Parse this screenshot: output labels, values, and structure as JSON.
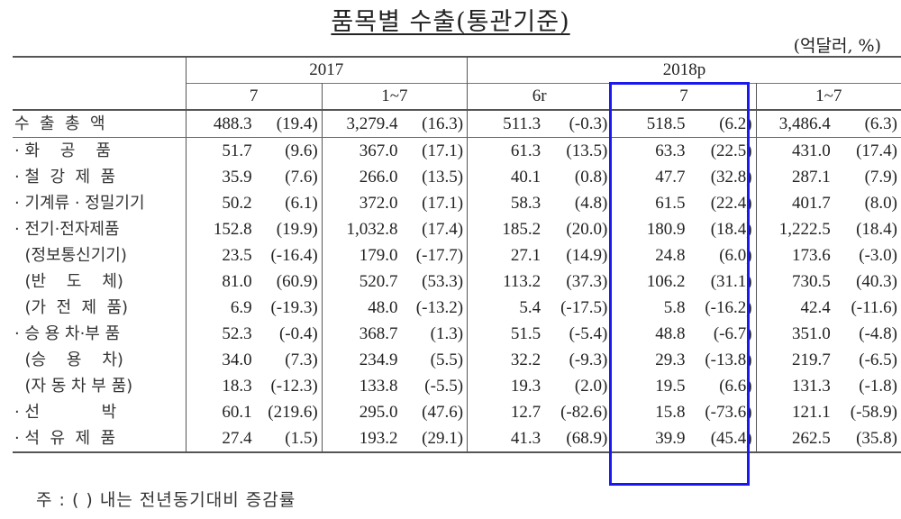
{
  "title": "품목별 수출(통관기준)",
  "unit": "(억달러, %)",
  "header": {
    "years": [
      "2017",
      "2018p"
    ],
    "periods": [
      "7",
      "1~7",
      "6r",
      "7",
      "1~7"
    ]
  },
  "rows": [
    {
      "label": "수  출  총  액",
      "v": [
        "488.3",
        "(19.4)",
        "3,279.4",
        "(16.3)",
        "511.3",
        "(-0.3)",
        "518.5",
        "(6.2)",
        "3,486.4",
        "(6.3)"
      ]
    },
    {
      "label": "· 화    공    품",
      "v": [
        "51.7",
        "(9.6)",
        "367.0",
        "(17.1)",
        "61.3",
        "(13.5)",
        "63.3",
        "(22.5)",
        "431.0",
        "(17.4)"
      ]
    },
    {
      "label": "· 철  강  제  품",
      "v": [
        "35.9",
        "(7.6)",
        "266.0",
        "(13.5)",
        "40.1",
        "(0.8)",
        "47.7",
        "(32.8)",
        "287.1",
        "(7.9)"
      ]
    },
    {
      "label": "· 기계류 · 정밀기기",
      "v": [
        "50.2",
        "(6.1)",
        "372.0",
        "(17.1)",
        "58.3",
        "(4.8)",
        "61.5",
        "(22.4)",
        "401.7",
        "(8.0)"
      ]
    },
    {
      "label": "· 전기·전자제품",
      "v": [
        "152.8",
        "(19.9)",
        "1,032.8",
        "(17.4)",
        "185.2",
        "(20.0)",
        "180.9",
        "(18.4)",
        "1,222.5",
        "(18.4)"
      ]
    },
    {
      "label": "  (정보통신기기)",
      "v": [
        "23.5",
        "(-16.4)",
        "179.0",
        "(-17.7)",
        "27.1",
        "(14.9)",
        "24.8",
        "(6.0)",
        "173.6",
        "(-3.0)"
      ]
    },
    {
      "label": "  (반    도    체)",
      "v": [
        "81.0",
        "(60.9)",
        "520.7",
        "(53.3)",
        "113.2",
        "(37.3)",
        "106.2",
        "(31.1)",
        "730.5",
        "(40.3)"
      ]
    },
    {
      "label": "  (가  전  제  품)",
      "v": [
        "6.9",
        "(-19.3)",
        "48.0",
        "(-13.2)",
        "5.4",
        "(-17.5)",
        "5.8",
        "(-16.2)",
        "42.4",
        "(-11.6)"
      ]
    },
    {
      "label": "· 승 용 차·부 품",
      "v": [
        "52.3",
        "(-0.4)",
        "368.7",
        "(1.3)",
        "51.5",
        "(-5.4)",
        "48.8",
        "(-6.7)",
        "351.0",
        "(-4.8)"
      ]
    },
    {
      "label": "  (승    용    차)",
      "v": [
        "34.0",
        "(7.3)",
        "234.9",
        "(5.5)",
        "32.2",
        "(-9.3)",
        "29.3",
        "(-13.8)",
        "219.7",
        "(-6.5)"
      ]
    },
    {
      "label": "  (자 동 차 부 품)",
      "v": [
        "18.3",
        "(-12.3)",
        "133.8",
        "(-5.5)",
        "19.3",
        "(2.0)",
        "19.5",
        "(6.6)",
        "131.3",
        "(-1.8)"
      ]
    },
    {
      "label": "· 선            박",
      "v": [
        "60.1",
        "(219.6)",
        "295.0",
        "(47.6)",
        "12.7",
        "(-82.6)",
        "15.8",
        "(-73.6)",
        "121.1",
        "(-58.9)"
      ]
    },
    {
      "label": "· 석  유  제  품",
      "v": [
        "27.4",
        "(1.5)",
        "193.2",
        "(29.1)",
        "41.3",
        "(68.9)",
        "39.9",
        "(45.4)",
        "262.5",
        "(35.8)"
      ]
    }
  ],
  "note": "주 : ( ) 내는 전년동기대비 증감률",
  "highlight_color": "#1a1aee"
}
